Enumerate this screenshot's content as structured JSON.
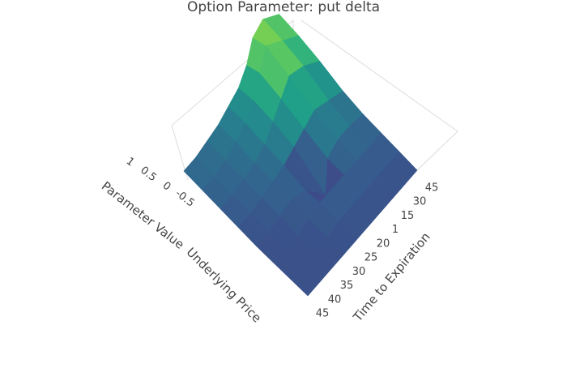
{
  "chart_data": {
    "type": "surface",
    "title": "Option Parameter: put delta",
    "x_label": "Time to Expiration",
    "y_label": "Underlying Price",
    "z_label": "Parameter Value",
    "x": [
      "45",
      "40",
      "35",
      "30",
      "25",
      "20",
      "1",
      "15",
      "30",
      "45"
    ],
    "z": [
      [
        -0.3,
        -0.3,
        -0.25,
        -0.2,
        -0.1,
        0.0,
        0.2,
        0.5,
        0.6,
        0.4
      ],
      [
        -0.35,
        -0.35,
        -0.3,
        -0.2,
        -0.1,
        0.1,
        0.4,
        0.7,
        0.5,
        0.3
      ],
      [
        -0.4,
        -0.4,
        -0.35,
        -0.3,
        -0.2,
        0.0,
        0.2,
        0.4,
        0.3,
        0.1
      ],
      [
        -0.45,
        -0.45,
        -0.4,
        -0.35,
        -0.3,
        -0.2,
        -0.1,
        0.0,
        -0.1,
        -0.2
      ],
      [
        -0.5,
        -0.5,
        -0.45,
        -0.4,
        -0.5,
        -0.9,
        -0.4,
        -0.3,
        -0.3,
        -0.35
      ],
      [
        -0.5,
        -0.5,
        -0.5,
        -0.45,
        -0.4,
        -0.4,
        -0.4,
        -0.4,
        -0.4,
        -0.4
      ],
      [
        -0.5,
        -0.5,
        -0.5,
        -0.5,
        -0.45,
        -0.45,
        -0.45,
        -0.45,
        -0.45,
        -0.45
      ],
      [
        -0.5,
        -0.5,
        -0.5,
        -0.5,
        -0.5,
        -0.5,
        -0.5,
        -0.5,
        -0.5,
        -0.5
      ]
    ],
    "zlim": [
      -1,
      1
    ],
    "zticks": [
      -0.5,
      0,
      0.5,
      1
    ],
    "colorscale": [
      "#440154",
      "#482878",
      "#3e4989",
      "#31688e",
      "#26828e",
      "#1f9e89",
      "#35b779",
      "#6ece58",
      "#b5de2b",
      "#fde725"
    ]
  }
}
